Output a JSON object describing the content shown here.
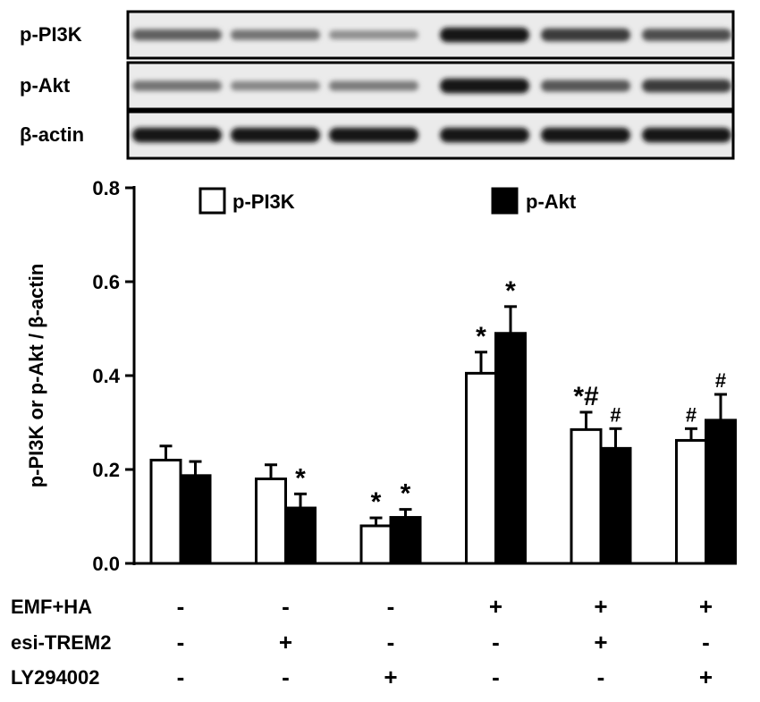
{
  "blot": {
    "rows": [
      {
        "label": "p-PI3K",
        "bands": [
          0.55,
          0.45,
          0.3,
          0.95,
          0.75,
          0.65
        ]
      },
      {
        "label": "p-Akt",
        "bands": [
          0.45,
          0.35,
          0.4,
          0.95,
          0.6,
          0.75
        ]
      },
      {
        "label": "β-actin",
        "bands": [
          0.95,
          0.95,
          0.95,
          0.95,
          0.95,
          0.95
        ]
      }
    ]
  },
  "chart_data": {
    "type": "bar",
    "ylabel": "p-PI3K  or  p-Akt / β-actin",
    "ylim": [
      0,
      0.8
    ],
    "yticks": [
      "0.0",
      "0.2",
      "0.4",
      "0.6",
      "0.8"
    ],
    "legend_position": "top",
    "series": [
      {
        "name": "p-PI3K",
        "fill": "#ffffff",
        "values": [
          0.22,
          0.18,
          0.08,
          0.405,
          0.285,
          0.262
        ],
        "errors": [
          0.03,
          0.03,
          0.017,
          0.045,
          0.037,
          0.025
        ],
        "markers": [
          "",
          "",
          "*",
          "*",
          "*#",
          "#"
        ]
      },
      {
        "name": "p-Akt",
        "fill": "#000000",
        "values": [
          0.187,
          0.118,
          0.098,
          0.49,
          0.245,
          0.305
        ],
        "errors": [
          0.03,
          0.03,
          0.017,
          0.057,
          0.042,
          0.055
        ],
        "markers": [
          "",
          "*",
          "*",
          "*",
          "#",
          "#"
        ]
      }
    ],
    "conditions": [
      {
        "label": "EMF+HA",
        "signs": [
          "-",
          "-",
          "-",
          "+",
          "+",
          "+"
        ]
      },
      {
        "label": "esi-TREM2",
        "signs": [
          "-",
          "+",
          "-",
          "-",
          "+",
          "-"
        ]
      },
      {
        "label": "LY294002",
        "signs": [
          "-",
          "-",
          "+",
          "-",
          "-",
          "+"
        ]
      }
    ]
  }
}
